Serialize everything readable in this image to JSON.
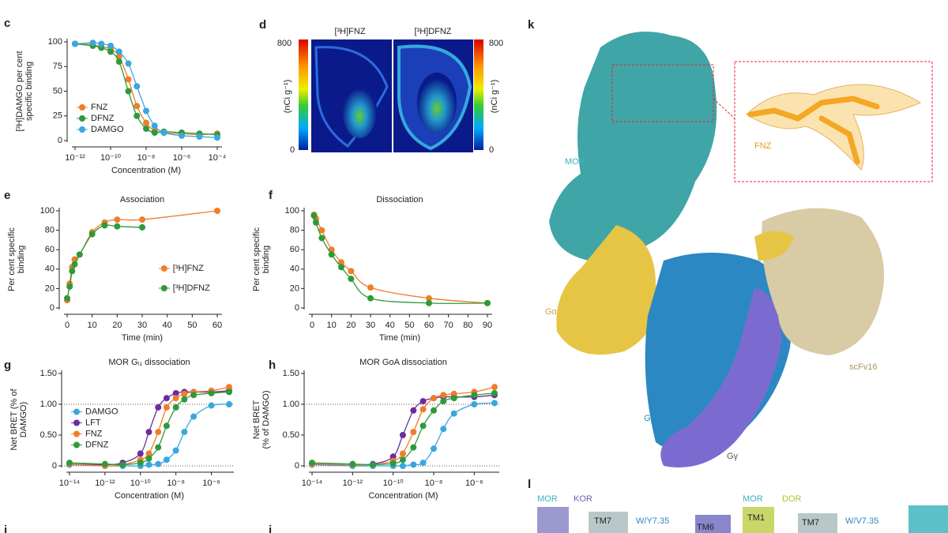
{
  "chart_data": [
    {
      "type": "scatter",
      "panel": "c",
      "xscale": "log",
      "legend": "lower left",
      "ylabel": [
        "[³H]DAMGO per cent",
        "specific binding"
      ],
      "xlabel": "Concentration (M)",
      "xlim": [
        1e-12,
        0.0001
      ],
      "xticks": [
        {
          "value": 1e-12,
          "label": "10⁻¹²"
        },
        {
          "value": 1e-10,
          "label": "10⁻¹⁰"
        },
        {
          "value": 1e-08,
          "label": "10⁻⁸"
        },
        {
          "value": 1e-06,
          "label": "10⁻⁶"
        },
        {
          "value": 0.0001,
          "label": "10⁻⁴"
        }
      ],
      "ylim": [
        0,
        100
      ],
      "yticks": [
        0,
        25,
        50,
        75,
        100
      ],
      "x": [
        1e-12,
        1e-11,
        3e-11,
        1e-10,
        3e-10,
        1e-09,
        3e-09,
        1e-08,
        3e-08,
        1e-07,
        1e-06,
        1e-05,
        0.0001
      ],
      "series": [
        {
          "name": "FNZ",
          "color": "#f07d2a",
          "values": [
            98,
            97,
            95,
            93,
            85,
            62,
            35,
            18,
            10,
            8,
            7,
            6,
            7
          ]
        },
        {
          "name": "DFNZ",
          "color": "#2e9a3a",
          "values": [
            98,
            96,
            94,
            90,
            80,
            50,
            25,
            12,
            8,
            9,
            8,
            7,
            6
          ]
        },
        {
          "name": "DAMGO",
          "color": "#3aa7de",
          "values": [
            98,
            99,
            98,
            96,
            90,
            78,
            55,
            30,
            15,
            8,
            5,
            4,
            3
          ]
        }
      ]
    },
    {
      "type": "scatter",
      "panel": "e",
      "title": "Association",
      "legend": "lower right",
      "ylabel": [
        "Per cent specific",
        "binding"
      ],
      "xlabel": "Time (min)",
      "xlim": [
        0,
        60
      ],
      "xticks": [
        0,
        10,
        20,
        30,
        40,
        50,
        60
      ],
      "ylim": [
        0,
        100
      ],
      "yticks": [
        0,
        20,
        40,
        60,
        80,
        100
      ],
      "x": [
        0,
        1,
        2,
        3,
        5,
        10,
        15,
        20,
        30,
        60
      ],
      "series": [
        {
          "name": "[³H]FNZ",
          "color": "#f07d2a",
          "values": [
            8,
            25,
            42,
            50,
            55,
            78,
            88,
            91,
            91,
            100
          ]
        },
        {
          "name": "[³H]DFNZ",
          "color": "#2e9a3a",
          "values": [
            10,
            22,
            38,
            45,
            55,
            76,
            85,
            84,
            83,
            null
          ]
        }
      ]
    },
    {
      "type": "scatter",
      "panel": "f",
      "title": "Dissociation",
      "ylabel": [
        "Per cent specific",
        "binding"
      ],
      "xlabel": "Time (min)",
      "xlim": [
        0,
        90
      ],
      "xticks": [
        0,
        10,
        20,
        30,
        40,
        50,
        60,
        70,
        80,
        90
      ],
      "ylim": [
        0,
        100
      ],
      "yticks": [
        0,
        20,
        40,
        60,
        80,
        100
      ],
      "x": [
        1,
        2,
        5,
        10,
        15,
        20,
        30,
        60,
        90
      ],
      "series": [
        {
          "color": "#f07d2a",
          "values": [
            96,
            92,
            80,
            60,
            47,
            38,
            21,
            10,
            5
          ]
        },
        {
          "color": "#2e9a3a",
          "values": [
            95,
            88,
            72,
            55,
            42,
            30,
            10,
            5,
            5
          ]
        }
      ]
    },
    {
      "type": "scatter",
      "panel": "g",
      "title": "MOR Gᵢ₁ dissociation",
      "xscale": "log",
      "legend": "center left",
      "ylabel": [
        "Net BRET (% of",
        "DAMGO)"
      ],
      "xlabel": "Concentration (M)",
      "reference_lines": [
        0,
        1
      ],
      "xlim": [
        1e-14,
        1e-05
      ],
      "xticks": [
        {
          "value": 1e-14,
          "label": "10⁻¹⁴"
        },
        {
          "value": 1e-12,
          "label": "10⁻¹²"
        },
        {
          "value": 1e-10,
          "label": "10⁻¹⁰"
        },
        {
          "value": 1e-08,
          "label": "10⁻⁸"
        },
        {
          "value": 1e-06,
          "label": "10⁻⁶"
        }
      ],
      "ylim": [
        0,
        1.5
      ],
      "yticks": [
        0,
        {
          "value": 0.5,
          "label": "0.50"
        },
        {
          "value": 1,
          "label": "1.00"
        },
        {
          "value": 1.5,
          "label": "1.50"
        }
      ],
      "x": [
        1e-14,
        1e-12,
        1e-11,
        1e-10,
        3e-10,
        1e-09,
        3e-09,
        1e-08,
        3e-08,
        1e-07,
        1e-06,
        1e-05
      ],
      "series": [
        {
          "name": "DAMGO",
          "color": "#3aa7de",
          "values": [
            0.02,
            0,
            0,
            0,
            0.02,
            0.03,
            0.1,
            0.25,
            0.55,
            0.8,
            0.98,
            1.0
          ]
        },
        {
          "name": "LFT",
          "color": "#6a2c9e",
          "values": [
            0.03,
            0.02,
            0.05,
            0.2,
            0.55,
            0.95,
            1.1,
            1.18,
            1.2,
            1.2,
            1.2,
            1.22
          ]
        },
        {
          "name": "FNZ",
          "color": "#f07d2a",
          "values": [
            0.03,
            0,
            0.02,
            0.1,
            0.2,
            0.55,
            0.95,
            1.1,
            1.17,
            1.2,
            1.22,
            1.28
          ]
        },
        {
          "name": "DFNZ",
          "color": "#2e9a3a",
          "values": [
            0.05,
            0.03,
            0.02,
            0.05,
            0.12,
            0.3,
            0.65,
            0.95,
            1.08,
            1.15,
            1.18,
            1.2
          ]
        }
      ]
    },
    {
      "type": "scatter",
      "panel": "h",
      "title": "MOR GoA dissociation",
      "xscale": "log",
      "ylabel": [
        "Net BRET",
        "(% of DAMGO)"
      ],
      "xlabel": "Concentration (M)",
      "reference_lines": [
        0,
        1
      ],
      "xlim": [
        1e-14,
        1e-05
      ],
      "xticks": [
        {
          "value": 1e-14,
          "label": "10⁻¹⁴"
        },
        {
          "value": 1e-12,
          "label": "10⁻¹²"
        },
        {
          "value": 1e-10,
          "label": "10⁻¹⁰"
        },
        {
          "value": 1e-08,
          "label": "10⁻⁸"
        },
        {
          "value": 1e-06,
          "label": "10⁻⁶"
        }
      ],
      "ylim": [
        0,
        1.5
      ],
      "yticks": [
        0,
        {
          "value": 0.5,
          "label": "0.50"
        },
        {
          "value": 1,
          "label": "1.00"
        },
        {
          "value": 1.5,
          "label": "1.50"
        }
      ],
      "x": [
        1e-14,
        1e-12,
        1e-11,
        1e-10,
        3e-10,
        1e-09,
        3e-09,
        1e-08,
        3e-08,
        1e-07,
        1e-06,
        1e-05
      ],
      "series": [
        {
          "color": "#3aa7de",
          "values": [
            0.02,
            0,
            0,
            0,
            0,
            0.02,
            0.05,
            0.28,
            0.6,
            0.85,
            1.0,
            1.02
          ]
        },
        {
          "color": "#6a2c9e",
          "values": [
            0.03,
            0.02,
            0.03,
            0.15,
            0.5,
            0.9,
            1.05,
            1.1,
            1.12,
            1.12,
            1.12,
            1.15
          ]
        },
        {
          "color": "#f07d2a",
          "values": [
            0.03,
            0.02,
            0.02,
            0.08,
            0.2,
            0.55,
            0.92,
            1.1,
            1.15,
            1.17,
            1.2,
            1.28
          ]
        },
        {
          "color": "#2e9a3a",
          "values": [
            0.05,
            0.03,
            0.02,
            0.04,
            0.1,
            0.3,
            0.65,
            0.9,
            1.05,
            1.1,
            1.15,
            1.18
          ]
        }
      ]
    }
  ],
  "panel_d": {
    "label": "d",
    "images": [
      "[³H]FNZ",
      "[³H]DFNZ"
    ],
    "scale_max": 800,
    "scale_min": 0,
    "unit": "(nCi g⁻¹)"
  },
  "panel_k": {
    "label": "k",
    "labels": [
      "MOR",
      "FNZ",
      "Gα",
      "scFv16",
      "Gβ",
      "Gγ"
    ]
  },
  "panel_l": {
    "label": "l",
    "labels": [
      "MOR",
      "KOR",
      "TM7",
      "W/Y7.35",
      "TM6",
      "MOR",
      "DOR",
      "TM1",
      "TM7",
      "W/V7.35"
    ]
  },
  "panel_labels": [
    "i",
    "j"
  ]
}
